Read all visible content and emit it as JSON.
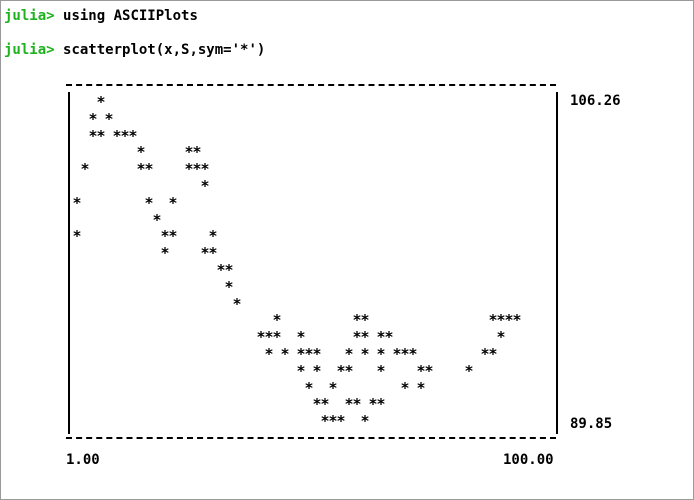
{
  "terminal": {
    "prompt": "julia>",
    "command_1": "using ASCIIPlots",
    "command_2": "scatterplot(x,S,sym='*')"
  },
  "chart_data": {
    "type": "scatter",
    "symbol": "*",
    "xlim": [
      1.0,
      100.0
    ],
    "ylim": [
      89.85,
      106.26
    ],
    "x_min_label": "1.00",
    "x_max_label": "100.00",
    "y_max_label": "106.26",
    "y_min_label": "89.85",
    "grid": false,
    "border": "ascii-box",
    "rows": [
      "   *",
      "  * *",
      "  ** ***",
      "        *     **",
      " *      **    ***",
      "                *",
      "*        *  *",
      "          *",
      "*          **    *",
      "           *    **",
      "                  **",
      "                   *",
      "                    *",
      "                         *         **               ****",
      "                       ***  *      ** **             *",
      "                        * * ***   * * * ***        **",
      "                            * *  **   *    **    *",
      "                             *  *        * *",
      "                              **  ** **",
      "                               ***  *"
    ]
  }
}
